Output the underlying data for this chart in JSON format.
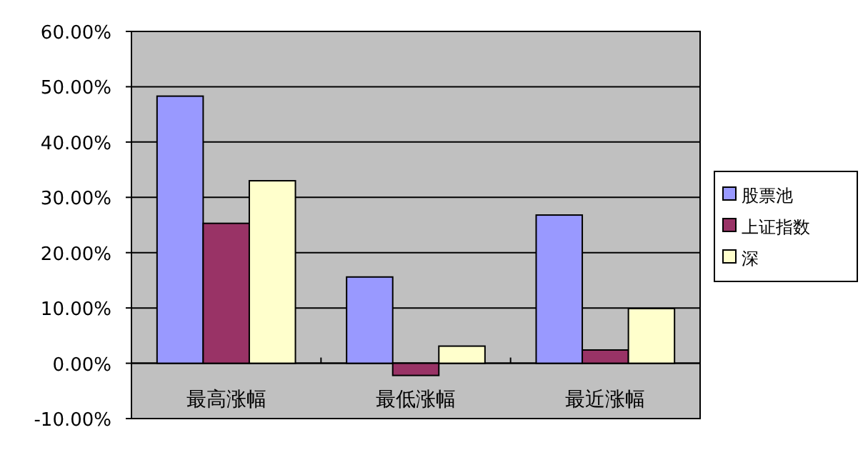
{
  "chart_data": {
    "type": "bar",
    "categories": [
      "最高涨幅",
      "最低涨幅",
      "最近涨幅"
    ],
    "series": [
      {
        "name": "股票池",
        "color": "#9999ff",
        "values": [
          48.3,
          15.6,
          26.8
        ]
      },
      {
        "name": "上证指数",
        "color": "#993366",
        "values": [
          25.3,
          -2.2,
          2.4
        ]
      },
      {
        "name": "深",
        "color": "#ffffcc",
        "values": [
          33.0,
          3.1,
          9.9
        ]
      }
    ],
    "ylim": [
      -10,
      60
    ],
    "yticks": [
      {
        "value": -10,
        "label": "-10.00%"
      },
      {
        "value": 0,
        "label": "0.00%"
      },
      {
        "value": 10,
        "label": "10.00%"
      },
      {
        "value": 20,
        "label": "20.00%"
      },
      {
        "value": 30,
        "label": "30.00%"
      },
      {
        "value": 40,
        "label": "40.00%"
      },
      {
        "value": 50,
        "label": "50.00%"
      },
      {
        "value": 60,
        "label": "60.00%"
      }
    ],
    "grid": "y",
    "legend": "right"
  }
}
